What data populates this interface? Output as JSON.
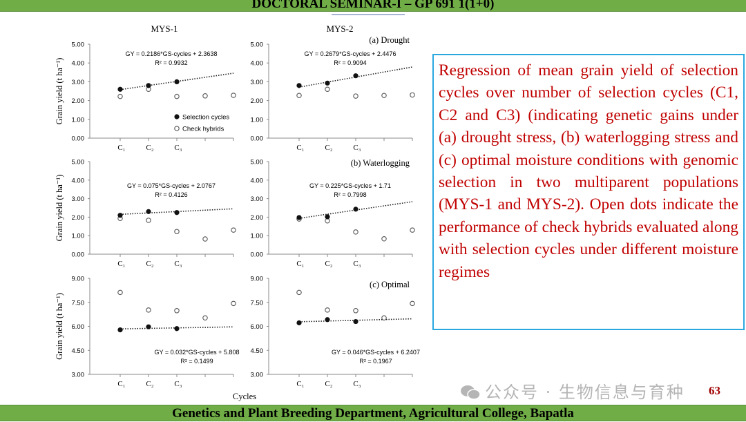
{
  "header": {
    "title": "DOCTORAL SEMINAR-I – GP 691 1(1+0)"
  },
  "footer": {
    "text": "Genetics and Plant Breeding Department, Agricultural College, Bapatla"
  },
  "page_number": "63",
  "watermark": {
    "text": "公众号 · 生物信息与育种"
  },
  "description": "Regression of mean grain yield of selection cycles over number of selection cycles (C1, C2 and C3) (indicating genetic gains under (a) drought stress, (b) waterlogging stress and (c) optimal moisture conditions with genomic selection in two multiparent populations (MYS-1 and MYS-2). Open dots indicate the performance of check hybrids evaluated along with selection cycles under different moisture regimes",
  "colors": {
    "header_bar": "#70ad47",
    "text_box_border": "#29a8e0",
    "description_text": "#c00000"
  },
  "chart_data": {
    "type": "scatter",
    "column_titles": [
      "MYS-1",
      "MYS-2"
    ],
    "xlabel": "Cycles",
    "ylabel": "Grain yield (t ha⁻¹)",
    "x_tick_labels": [
      "C₁",
      "C₂",
      "C₃",
      "",
      ""
    ],
    "legend": {
      "selection": "Selection cycles",
      "check": "Check hybrids",
      "placement": "bottom-right of MYS-1 drought panel"
    },
    "rows": [
      {
        "label": "(a) Drought",
        "ylim": [
          0,
          5
        ],
        "yticks": [
          "0.00",
          "1.00",
          "2.00",
          "3.00",
          "4.00",
          "5.00"
        ],
        "panels": [
          {
            "population": "MYS-1",
            "selection": [
              2.6,
              2.8,
              3.0
            ],
            "check": [
              2.22,
              2.6,
              2.22,
              2.25,
              2.28
            ],
            "slope": 0.2186,
            "intercept": 2.3638,
            "equation": "GY = 0.2186*GS-cycles + 2.3638",
            "r2": "R² = 0.9932"
          },
          {
            "population": "MYS-2",
            "selection": [
              2.8,
              2.93,
              3.32
            ],
            "check": [
              2.27,
              2.6,
              2.24,
              2.27,
              2.3
            ],
            "slope": 0.2679,
            "intercept": 2.4476,
            "equation": "GY = 0.2679*GS-cycles + 2.4476",
            "r2": "R² = 0.9094"
          }
        ]
      },
      {
        "label": "(b) Waterlogging",
        "ylim": [
          0,
          5
        ],
        "yticks": [
          "0.00",
          "1.00",
          "2.00",
          "3.00",
          "4.00",
          "5.00"
        ],
        "panels": [
          {
            "population": "MYS-1",
            "selection": [
              2.1,
              2.3,
              2.25
            ],
            "check": [
              1.93,
              1.83,
              1.22,
              0.82,
              1.3
            ],
            "slope": 0.075,
            "intercept": 2.0767,
            "equation": "GY = 0.075*GS-cycles + 2.0767",
            "r2": "R² = 0.4126"
          },
          {
            "population": "MYS-2",
            "selection": [
              1.98,
              2.02,
              2.43
            ],
            "check": [
              1.9,
              1.8,
              1.2,
              0.83,
              1.3
            ],
            "slope": 0.225,
            "intercept": 1.71,
            "equation": "GY = 0.225*GS-cycles + 1.71",
            "r2": "R² = 0.7998"
          }
        ]
      },
      {
        "label": "(c) Optimal",
        "ylim": [
          3,
          9
        ],
        "yticks": [
          "3.00",
          "4.50",
          "6.00",
          "7.50",
          "9.00"
        ],
        "panels": [
          {
            "population": "MYS-1",
            "selection": [
              5.78,
              5.97,
              5.86
            ],
            "check": [
              8.12,
              7.02,
              6.98,
              6.53,
              7.43
            ],
            "slope": 0.032,
            "intercept": 5.808,
            "equation": "GY = 0.032*GS-cycles + 5.808",
            "r2": "R² = 0.1499"
          },
          {
            "population": "MYS-2",
            "selection": [
              6.22,
              6.42,
              6.3
            ],
            "check": [
              8.12,
              7.02,
              6.98,
              6.53,
              7.43
            ],
            "slope": 0.046,
            "intercept": 6.2407,
            "equation": "GY = 0.046*GS-cycles + 6.2407",
            "r2": "R² = 0.1967"
          }
        ]
      }
    ]
  }
}
